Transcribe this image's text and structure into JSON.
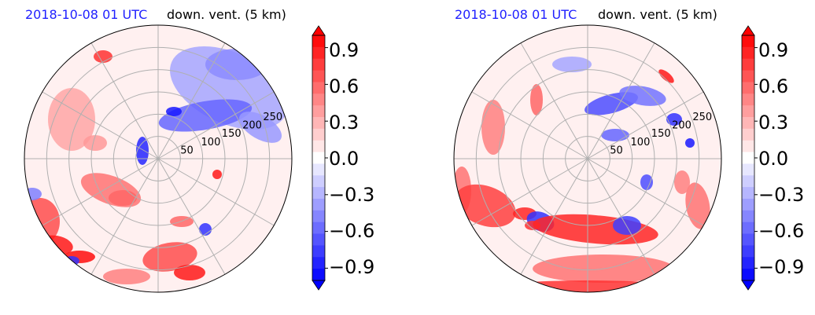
{
  "panels": [
    {
      "date_label": "2018-10-08 01 UTC",
      "field_label": "down. vent. (5 km)"
    },
    {
      "date_label": "2018-10-08 01 UTC",
      "field_label": "down. vent. (5 km)"
    }
  ],
  "chart_data": [
    {
      "type": "heatmap",
      "projection": "polar",
      "radial_ticks": [
        "50",
        "100",
        "150",
        "200",
        "250"
      ],
      "radial_values": [
        50,
        100,
        150,
        200,
        250
      ],
      "grid": true,
      "colorbar": {
        "ticks": [
          "0.9",
          "0.6",
          "0.3",
          "0.0",
          "−0.3",
          "−0.6",
          "−0.9"
        ],
        "range": [
          -1.0,
          1.0
        ],
        "levels": 21,
        "extend": "both",
        "colormap": "bwr",
        "colors": {
          "negative": "#0000ff",
          "zero": "#ffffff",
          "positive": "#ff0000"
        }
      }
    },
    {
      "type": "heatmap",
      "projection": "polar",
      "radial_ticks": [
        "50",
        "100",
        "150",
        "200",
        "250"
      ],
      "radial_values": [
        50,
        100,
        150,
        200,
        250
      ],
      "grid": true,
      "colorbar": {
        "ticks": [
          "0.9",
          "0.6",
          "0.3",
          "0.0",
          "−0.3",
          "−0.6",
          "−0.9"
        ],
        "range": [
          -1.0,
          1.0
        ],
        "levels": 21,
        "extend": "both",
        "colormap": "bwr",
        "colors": {
          "negative": "#0000ff",
          "zero": "#ffffff",
          "positive": "#ff0000"
        }
      }
    }
  ]
}
